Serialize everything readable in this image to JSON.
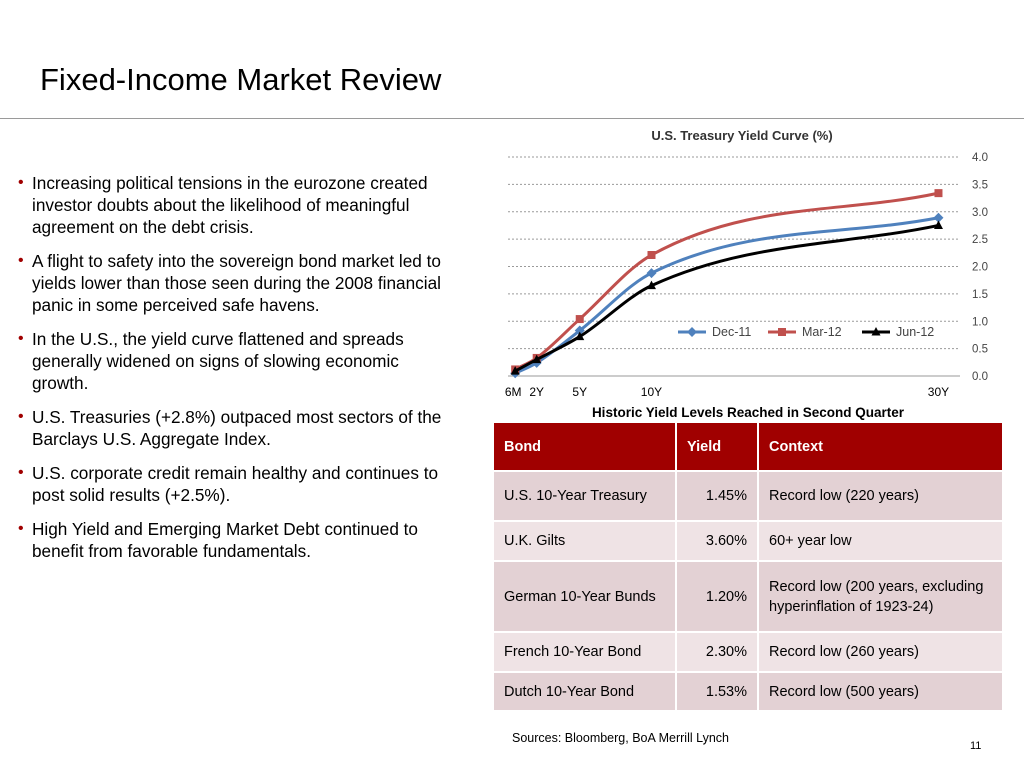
{
  "slide": {
    "title": "Fixed-Income Market Review",
    "page_number": "11",
    "sources": "Sources: Bloomberg, BoA Merrill Lynch"
  },
  "bullets": [
    " Increasing political tensions in the eurozone created investor doubts about the likelihood of meaningful agreement on the debt crisis.",
    " A flight to safety into the sovereign bond market led to yields lower than those seen during the 2008 financial panic in some perceived safe havens.",
    " In the U.S., the yield curve flattened and spreads generally widened on signs of slowing economic growth.",
    " U.S. Treasuries (+2.8%) outpaced most sectors of the Barclays U.S. Aggregate Index.",
    " U.S. corporate credit remain healthy and continues to post solid results (+2.5%).",
    " High Yield and Emerging Market Debt continued to benefit from favorable fundamentals."
  ],
  "chart_data": {
    "type": "line",
    "title": "U.S. Treasury Yield Curve (%)",
    "x": [
      0.5,
      2,
      5,
      10,
      30
    ],
    "x_tick_labels": [
      "6M",
      "2Y",
      "5Y",
      "10Y",
      "30Y"
    ],
    "ylim": [
      0,
      4.0
    ],
    "y_ticks": [
      "0.0",
      "0.5",
      "1.0",
      "1.5",
      "2.0",
      "2.5",
      "3.0",
      "3.5",
      "4.0"
    ],
    "grid": true,
    "y_axis_side": "right",
    "legend_position": "bottom-inside",
    "series": [
      {
        "name": "Dec-11",
        "values": [
          0.05,
          0.24,
          0.83,
          1.88,
          2.89
        ],
        "color": "#4f81bd",
        "marker": "diamond"
      },
      {
        "name": "Mar-12",
        "values": [
          0.12,
          0.33,
          1.04,
          2.21,
          3.34
        ],
        "color": "#c0504d",
        "marker": "square"
      },
      {
        "name": "Jun-12",
        "values": [
          0.09,
          0.3,
          0.72,
          1.65,
          2.75
        ],
        "color": "#000000",
        "marker": "triangle"
      }
    ]
  },
  "table": {
    "caption": "Historic Yield Levels Reached in Second Quarter",
    "headers": [
      "Bond",
      "Yield",
      "Context"
    ],
    "rows": [
      [
        "U.S. 10-Year Treasury",
        "1.45%",
        "Record low (220 years)"
      ],
      [
        "U.K.  Gilts",
        "3.60%",
        "60+ year low"
      ],
      [
        "German 10-Year Bunds",
        "1.20%",
        "Record low (200 years, excluding hyperinflation of 1923-24)"
      ],
      [
        "French 10-Year Bond",
        "2.30%",
        "Record low (260 years)"
      ],
      [
        "Dutch 10-Year  Bond",
        "1.53%",
        "Record low (500 years)"
      ]
    ],
    "header_color": "#a00000"
  }
}
